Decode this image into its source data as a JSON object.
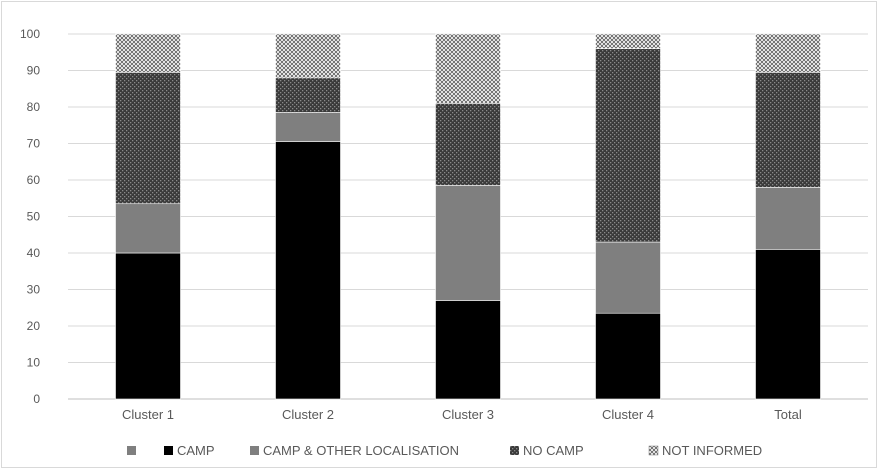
{
  "chart_data": {
    "type": "bar",
    "stacked": true,
    "categories": [
      "Cluster 1",
      "Cluster 2",
      "Cluster 3",
      "Cluster 4",
      "Total"
    ],
    "yticks": [
      "0",
      "10",
      "20",
      "30",
      "40",
      "50",
      "60",
      "70",
      "80",
      "90",
      "100"
    ],
    "ylim": [
      0,
      100
    ],
    "grid": true,
    "legend_position": "bottom",
    "series": [
      {
        "name": "CAMP",
        "color": "#000000",
        "pattern": "solid",
        "values": [
          40,
          70.5,
          27,
          23.5,
          41
        ]
      },
      {
        "name": "CAMP & OTHER LOCALISATION",
        "color": "#7f7f7f",
        "pattern": "solid",
        "values": [
          13.5,
          8,
          31.5,
          19.5,
          17
        ]
      },
      {
        "name": "NO CAMP",
        "color": "#404040",
        "pattern": "dotted",
        "values": [
          36,
          9.5,
          22.5,
          53,
          31.5
        ]
      },
      {
        "name": "NOT INFORMED",
        "color": "#ffffff",
        "pattern": "crosshatch",
        "values": [
          10.5,
          12,
          19,
          4,
          10.5
        ]
      }
    ],
    "legend_extra_marker": {
      "color": "#7f7f7f",
      "label": ""
    }
  }
}
